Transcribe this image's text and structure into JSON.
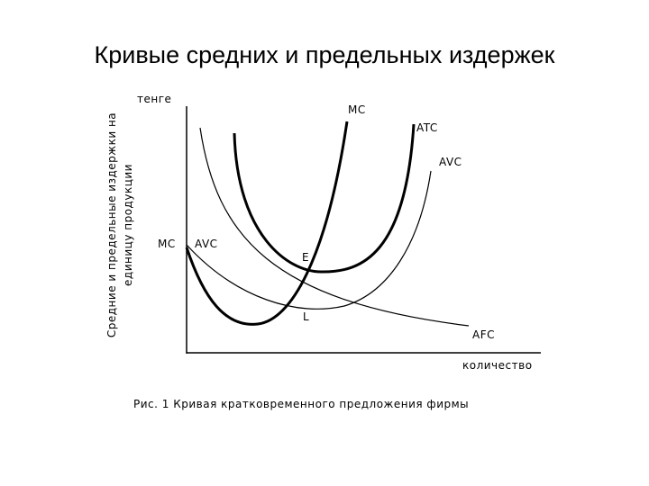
{
  "title": "Кривые средних и предельных издержек",
  "diagram": {
    "y_axis_label": [
      "Средние и предельные издержки на",
      "единицу продукции"
    ],
    "y_unit": "тенге",
    "x_axis_label": "количество",
    "labels": {
      "mc_top": "MC",
      "atc": "ATC",
      "avc_right": "AVC",
      "mc_left": "MC",
      "avc_left": "AVC",
      "e": "E",
      "l": "L",
      "afc": "AFC"
    },
    "caption": "Рис. 1  Кривая кратковременного предложения фирмы"
  }
}
